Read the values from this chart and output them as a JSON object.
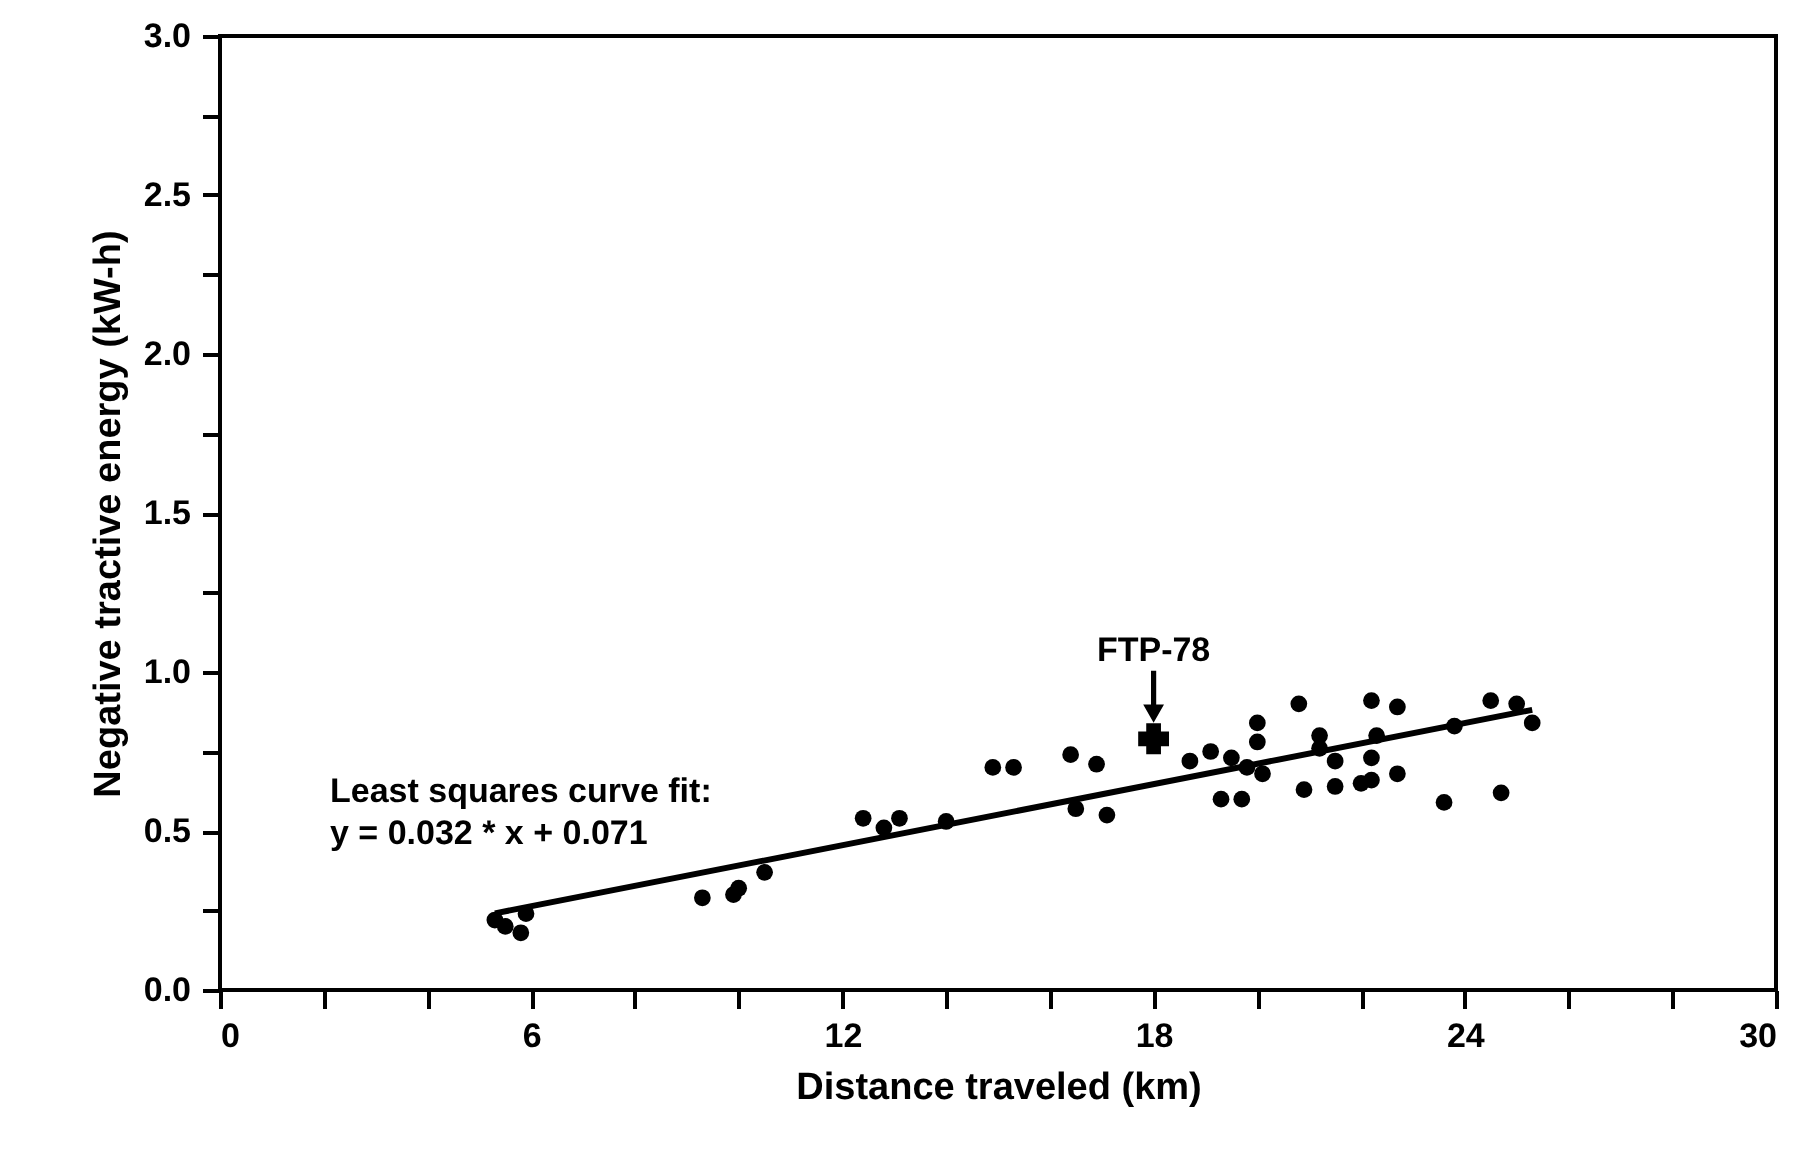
{
  "chart_data": {
    "type": "scatter",
    "xlabel": "Distance traveled (km)",
    "ylabel": "Negative tractive energy (kW-h)",
    "xlim": [
      0,
      30
    ],
    "ylim": [
      0,
      3
    ],
    "xticks": [
      0,
      {
        "value": 2,
        "label": null
      },
      {
        "value": 4,
        "label": null
      },
      6,
      {
        "value": 8,
        "label": null
      },
      {
        "value": 10,
        "label": null
      },
      12,
      {
        "value": 14,
        "label": null
      },
      {
        "value": 16,
        "label": null
      },
      18,
      {
        "value": 20,
        "label": null
      },
      {
        "value": 22,
        "label": null
      },
      24,
      {
        "value": 26,
        "label": null
      },
      {
        "value": 28,
        "label": null
      },
      30
    ],
    "yticks": [
      {
        "value": 0,
        "label": "0.0"
      },
      {
        "value": 0.25,
        "label": null
      },
      0.5,
      {
        "value": 0.75,
        "label": null
      },
      {
        "value": 1,
        "label": "1.0"
      },
      {
        "value": 1.25,
        "label": null
      },
      1.5,
      {
        "value": 1.75,
        "label": null
      },
      {
        "value": 2,
        "label": "2.0"
      },
      {
        "value": 2.25,
        "label": null
      },
      2.5,
      {
        "value": 2.75,
        "label": null
      },
      {
        "value": 3,
        "label": "3.0"
      }
    ],
    "grid": false,
    "series": [
      {
        "marker": "circle",
        "color": "#000000",
        "x": [
          5.3,
          5.5,
          5.8,
          5.9,
          9.3,
          9.9,
          10.0,
          10.5,
          12.4,
          12.8,
          13.1,
          14.0,
          14.9,
          15.3,
          16.4,
          16.5,
          16.9,
          17.1,
          18.7,
          19.1,
          19.3,
          19.5,
          19.7,
          19.8,
          20.0,
          20.0,
          20.1,
          20.8,
          20.9,
          21.2,
          21.2,
          21.5,
          21.5,
          22.0,
          22.2,
          22.2,
          22.3,
          22.2,
          22.7,
          22.7,
          23.6,
          23.8,
          24.5,
          24.7,
          25.0,
          25.3
        ],
        "values": [
          0.22,
          0.2,
          0.18,
          0.24,
          0.29,
          0.3,
          0.32,
          0.37,
          0.54,
          0.51,
          0.54,
          0.53,
          0.7,
          0.7,
          0.74,
          0.57,
          0.71,
          0.55,
          0.72,
          0.75,
          0.6,
          0.73,
          0.6,
          0.7,
          0.78,
          0.84,
          0.68,
          0.9,
          0.63,
          0.8,
          0.76,
          0.72,
          0.64,
          0.65,
          0.91,
          0.73,
          0.8,
          0.66,
          0.89,
          0.68,
          0.59,
          0.83,
          0.91,
          0.62,
          0.9,
          0.84
        ]
      },
      {
        "type": "scatter",
        "marker": "cross",
        "color": "#000000",
        "x": [
          18.0
        ],
        "values": [
          0.79
        ]
      },
      {
        "type": "line",
        "color": "#000000",
        "x": [
          5.3,
          25.3
        ],
        "values": [
          0.241,
          0.881
        ]
      }
    ],
    "annotations": [
      {
        "text": "FTP-78",
        "x": 18.0,
        "y": 0.79
      },
      "Least squares curve fit:",
      "y = 0.032 * x + 0.071"
    ]
  }
}
